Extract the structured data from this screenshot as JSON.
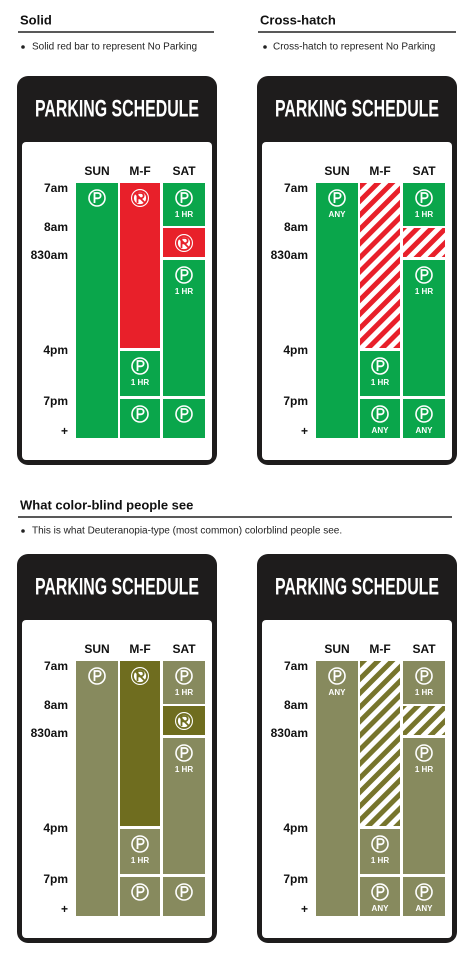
{
  "sections": [
    {
      "heading": "Solid",
      "bullet": "Solid red bar to represent No Parking"
    },
    {
      "heading": "Cross-hatch",
      "bullet": "Cross-hatch to represent No Parking"
    },
    {
      "heading": "What color-blind people see",
      "bullet": "This is what Deuteranopia-type (most common) colorblind people see."
    }
  ],
  "signs": [
    {
      "title": "PARKING SCHEDULE",
      "days": [
        "SUN",
        "M-F",
        "SAT"
      ],
      "times": [
        "7am",
        "8am",
        "830am",
        "4pm",
        "7pm",
        "+"
      ],
      "labels": [
        "1 HR",
        "1 HR",
        "1 HR"
      ]
    },
    {
      "title": "PARKING SCHEDULE",
      "days": [
        "SUN",
        "M-F",
        "SAT"
      ],
      "times": [
        "7am",
        "8am",
        "830am",
        "4pm",
        "7pm",
        "+"
      ],
      "labels": [
        "ANY",
        "1 HR",
        "ANY",
        "1 HR",
        "1 HR",
        "ANY"
      ]
    },
    {
      "title": "PARKING SCHEDULE",
      "days": [
        "SUN",
        "M-F",
        "SAT"
      ],
      "times": [
        "7am",
        "8am",
        "830am",
        "4pm",
        "7pm",
        "+"
      ],
      "labels": [
        "1 HR",
        "1 HR",
        "1 HR"
      ]
    },
    {
      "title": "PARKING SCHEDULE",
      "days": [
        "SUN",
        "M-F",
        "SAT"
      ],
      "times": [
        "7am",
        "8am",
        "830am",
        "4pm",
        "7pm",
        "+"
      ],
      "labels": [
        "ANY",
        "1 HR",
        "ANY",
        "1 HR",
        "1 HR",
        "ANY"
      ]
    }
  ]
}
